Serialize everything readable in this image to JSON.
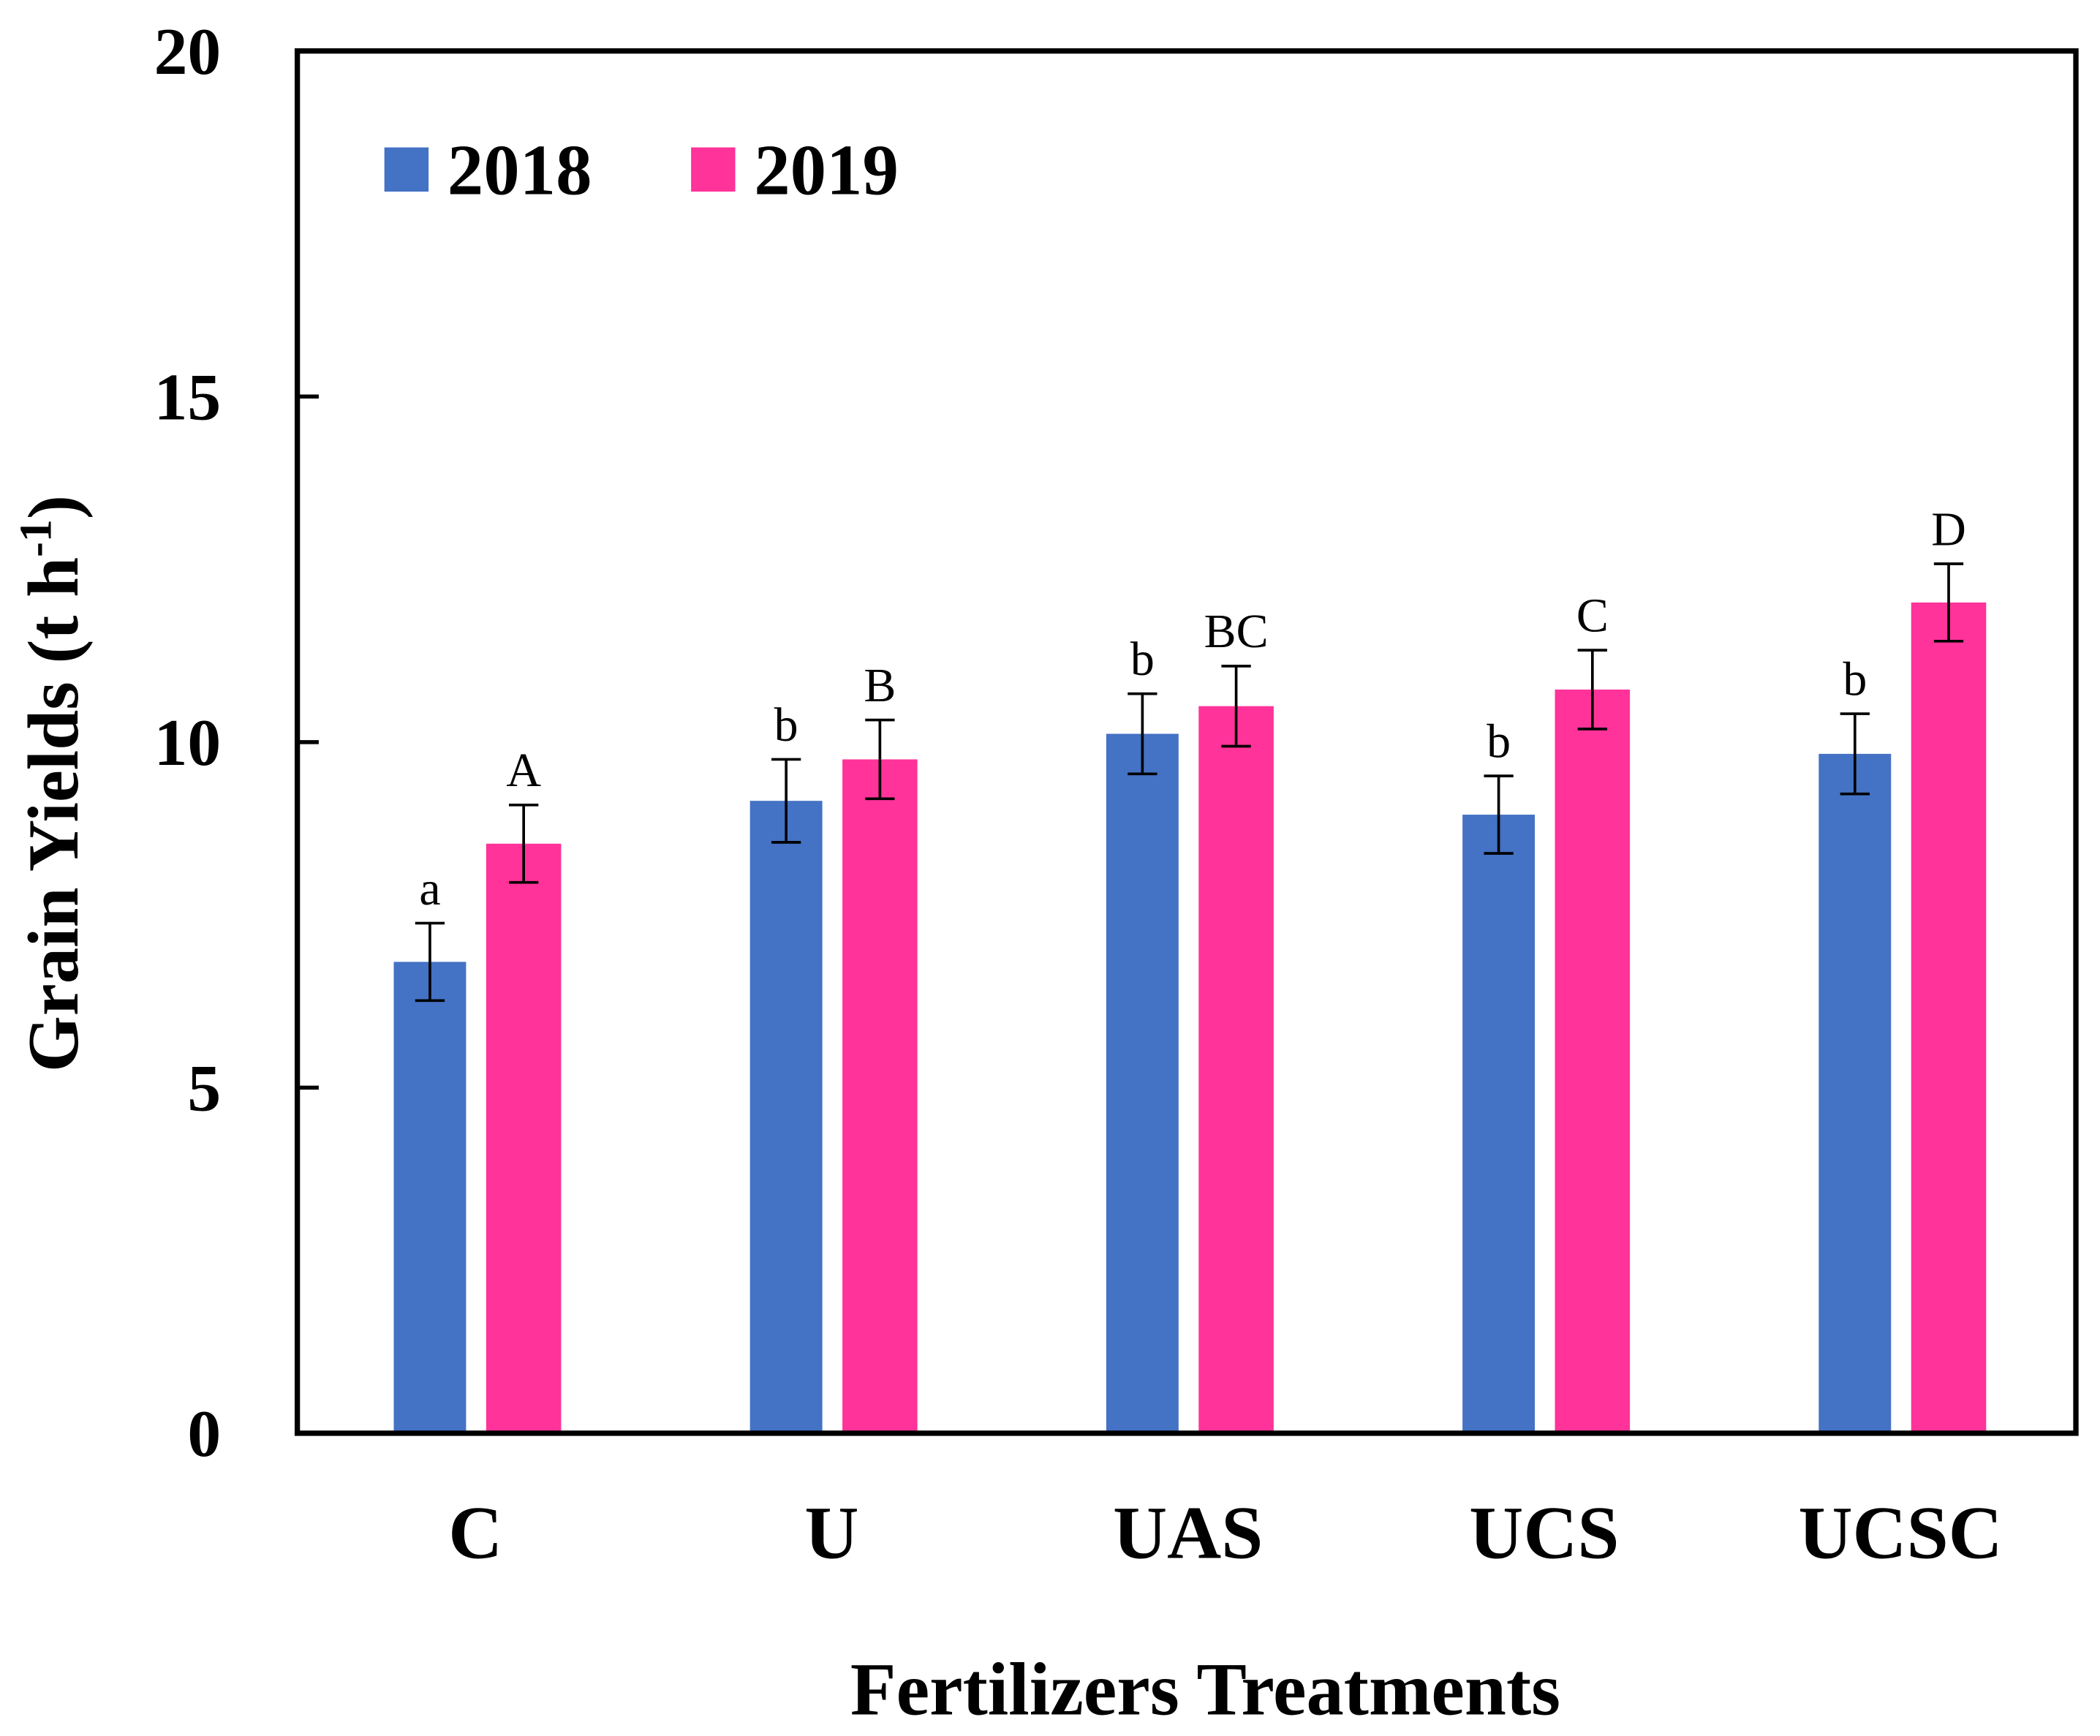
{
  "chart_data": {
    "type": "bar",
    "title": "",
    "xlabel": "Fertilizers Treatments",
    "ylabel": "Grain Yields (t h",
    "ylabel_superscript": "-1",
    "ylabel_close": ")",
    "ylim": [
      0,
      20
    ],
    "yticks": [
      0,
      5,
      10,
      15,
      20
    ],
    "grid": false,
    "legend_position": "top-left",
    "categories": [
      "C",
      "U",
      "UAS",
      "UCS",
      "UCSC"
    ],
    "series": [
      {
        "name": "2018",
        "color": "#4472C4",
        "values": [
          6.82,
          9.15,
          10.12,
          8.95,
          9.83
        ],
        "errors": [
          0.56,
          0.6,
          0.58,
          0.56,
          0.58
        ],
        "letters": [
          "a",
          "b",
          "b",
          "b",
          "b"
        ]
      },
      {
        "name": "2019",
        "color": "#FF3399",
        "values": [
          8.53,
          9.75,
          10.52,
          10.76,
          12.02
        ],
        "errors": [
          0.56,
          0.57,
          0.58,
          0.57,
          0.56
        ],
        "letters": [
          "A",
          "B",
          "BC",
          "C",
          "D"
        ]
      }
    ]
  }
}
